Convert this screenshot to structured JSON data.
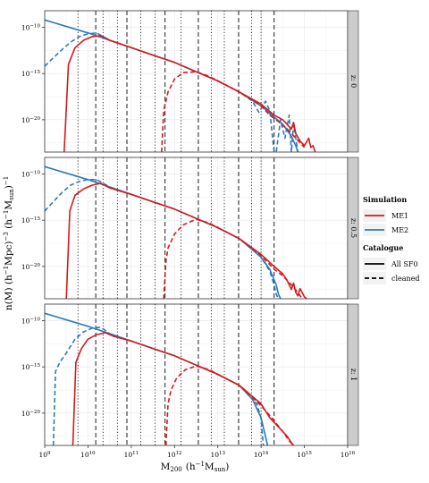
{
  "chart_data": {
    "type": "line",
    "xlabel": "M",
    "xlabel_sub": "200",
    "xlabel_units": "(h",
    "xlabel_units_sup": "−1",
    "xlabel_units_tail": "M",
    "xlabel_units_sub": "sun",
    "xlabel_units_close": ")",
    "ylabel_parts": {
      "a": "n(M)  (h",
      "a_sup": "−1",
      "b": "Mpc)",
      "b_sup": "−3",
      "c": "  (h",
      "c_sup": "−1",
      "d": "M",
      "d_sub": "sun",
      "e": ")",
      "e_sup": "−1"
    },
    "x_scale": "log",
    "y_scale": "log",
    "xlim_exp": [
      9,
      16
    ],
    "x_ticks": [
      {
        "exp": 9,
        "base": "10",
        "sup": "9"
      },
      {
        "exp": 10,
        "base": "10",
        "sup": "10"
      },
      {
        "exp": 11,
        "base": "10",
        "sup": "11"
      },
      {
        "exp": 12,
        "base": "10",
        "sup": "12"
      },
      {
        "exp": 13,
        "base": "10",
        "sup": "13"
      },
      {
        "exp": 14,
        "base": "10",
        "sup": "14"
      },
      {
        "exp": 15,
        "base": "10",
        "sup": "15"
      },
      {
        "exp": 16,
        "base": "10",
        "sup": "16"
      }
    ],
    "y_ticks": [
      {
        "exp": -10,
        "base": "10",
        "sup": "−10"
      },
      {
        "exp": -15,
        "base": "10",
        "sup": "−15"
      },
      {
        "exp": -20,
        "base": "10",
        "sup": "−20"
      }
    ],
    "grid": true,
    "legend_position": "right",
    "legend": {
      "sim_title": "Simulation",
      "sim_entries": [
        {
          "label": "ME1",
          "color": "#d7191c"
        },
        {
          "label": "ME2",
          "color": "#2b7bba"
        }
      ],
      "cat_title": "Catalogue",
      "cat_entries": [
        {
          "label": "All SF0",
          "style": "solid"
        },
        {
          "label": "cleaned",
          "style": "dashed"
        }
      ]
    },
    "colors": {
      "ME1": "#d7191c",
      "ME2": "#2b7bba",
      "strip": "#cccccc",
      "ref_line": "#333333"
    },
    "reference_lines": {
      "dashed_exp": [
        10.18,
        10.9,
        11.78,
        12.55,
        13.48,
        14.3
      ],
      "dotted_exp": [
        9.77,
        10.35,
        10.68,
        11.22,
        11.55,
        12.15,
        12.85,
        13.15,
        13.78,
        14.0
      ]
    },
    "panels": [
      {
        "strip": "z: 0",
        "ylim_exp": [
          -23.5,
          -8.2
        ],
        "series": [
          {
            "sim": "ME2",
            "style": "solid",
            "x_exp": [
              9.0,
              10.0,
              10.5,
              11.0,
              11.5,
              12.0,
              12.5,
              13.0,
              13.5,
              14.0,
              14.5,
              14.7,
              14.8,
              14.85
            ],
            "y_exp": [
              -9.2,
              -10.6,
              -11.4,
              -12.2,
              -13.0,
              -13.8,
              -14.8,
              -15.8,
              -17.0,
              -18.5,
              -20.5,
              -21.8,
              -22.8,
              -23.5
            ]
          },
          {
            "sim": "ME2",
            "style": "dashed",
            "x_exp": [
              9.0,
              9.2,
              9.4,
              9.6,
              9.8,
              10.0,
              10.2,
              10.5,
              11.0,
              11.5,
              12.0,
              12.5,
              13.0,
              13.5,
              13.8,
              13.95,
              14.1,
              14.2,
              14.3,
              14.35,
              14.45,
              14.55,
              14.65,
              14.7,
              14.75,
              14.85
            ],
            "y_exp": [
              -14.2,
              -13.3,
              -12.4,
              -11.6,
              -11.0,
              -10.7,
              -10.6,
              -11.4,
              -12.2,
              -13.0,
              -13.8,
              -14.8,
              -15.8,
              -17.0,
              -18.0,
              -19.2,
              -18.0,
              -19.0,
              -23.5,
              -23.5,
              -20.0,
              -22.0,
              -19.5,
              -23.5,
              -20.5,
              -23.5
            ]
          },
          {
            "sim": "ME1",
            "style": "solid",
            "x_exp": [
              9.45,
              9.55,
              9.7,
              9.9,
              10.1,
              10.3,
              10.5,
              11.0,
              11.5,
              12.0,
              12.5,
              13.0,
              13.5,
              14.0,
              14.3,
              14.5,
              14.6,
              14.7,
              14.75,
              14.8,
              14.9,
              15.0,
              15.1,
              15.15,
              15.2,
              15.25
            ],
            "y_exp": [
              -23.5,
              -14.0,
              -12.2,
              -11.4,
              -11.0,
              -10.9,
              -11.4,
              -12.2,
              -13.0,
              -13.8,
              -14.8,
              -15.8,
              -17.0,
              -18.3,
              -19.5,
              -20.0,
              -20.5,
              -21.0,
              -20.3,
              -21.5,
              -22.3,
              -22.8,
              -22.0,
              -23.0,
              -22.8,
              -23.5
            ]
          },
          {
            "sim": "ME1",
            "style": "dashed",
            "x_exp": [
              11.7,
              11.75,
              11.85,
              12.0,
              12.2,
              12.5,
              12.8,
              13.0,
              13.5,
              14.0,
              14.2,
              14.4,
              14.6,
              14.8,
              15.0
            ],
            "y_exp": [
              -23.5,
              -19.0,
              -17.0,
              -15.6,
              -14.9,
              -14.8,
              -15.3,
              -15.8,
              -17.0,
              -18.5,
              -19.5,
              -20.2,
              -21.0,
              -22.0,
              -23.0
            ]
          }
        ]
      },
      {
        "strip": "z: 0.5",
        "ylim_exp": [
          -23.5,
          -8.2
        ],
        "series": [
          {
            "sim": "ME2",
            "style": "solid",
            "x_exp": [
              9.0,
              10.0,
              10.5,
              11.0,
              11.5,
              12.0,
              12.5,
              13.0,
              13.5,
              14.0,
              14.2,
              14.35,
              14.4,
              14.45
            ],
            "y_exp": [
              -9.2,
              -10.6,
              -11.4,
              -12.2,
              -13.0,
              -13.8,
              -14.8,
              -15.8,
              -17.0,
              -19.0,
              -20.3,
              -22.0,
              -23.0,
              -23.5
            ]
          },
          {
            "sim": "ME2",
            "style": "dashed",
            "x_exp": [
              9.0,
              9.2,
              9.4,
              9.6,
              9.8,
              10.0,
              10.2,
              10.5,
              11.0,
              11.5,
              12.0,
              12.5,
              13.0,
              13.5,
              14.0,
              14.2,
              14.3,
              14.35,
              14.4
            ],
            "y_exp": [
              -14.0,
              -13.0,
              -12.0,
              -11.2,
              -10.8,
              -10.6,
              -10.6,
              -11.4,
              -12.2,
              -13.0,
              -13.8,
              -14.8,
              -15.8,
              -17.0,
              -19.0,
              -20.5,
              -22.0,
              -23.0,
              -23.5
            ]
          },
          {
            "sim": "ME1",
            "style": "solid",
            "x_exp": [
              9.5,
              9.58,
              9.7,
              9.9,
              10.1,
              10.3,
              10.5,
              11.0,
              11.5,
              12.0,
              12.5,
              13.0,
              13.5,
              14.0,
              14.3,
              14.5,
              14.6,
              14.7,
              14.75,
              14.8,
              14.85,
              14.9,
              15.0,
              15.05
            ],
            "y_exp": [
              -23.5,
              -14.0,
              -12.3,
              -11.6,
              -11.2,
              -11.0,
              -11.5,
              -12.2,
              -13.0,
              -13.8,
              -14.8,
              -15.8,
              -17.0,
              -18.7,
              -20.0,
              -20.8,
              -21.5,
              -22.5,
              -21.8,
              -22.8,
              -23.2,
              -22.4,
              -23.3,
              -23.5
            ]
          },
          {
            "sim": "ME1",
            "style": "dashed",
            "x_exp": [
              11.75,
              11.8,
              11.85,
              12.0,
              12.2,
              12.5,
              12.8,
              13.0,
              13.5,
              14.0,
              14.3,
              14.5,
              14.7,
              14.85,
              14.95
            ],
            "y_exp": [
              -23.5,
              -19.5,
              -18.0,
              -16.5,
              -15.5,
              -14.9,
              -15.3,
              -15.8,
              -17.0,
              -18.8,
              -20.3,
              -21.0,
              -22.0,
              -22.8,
              -23.5
            ]
          }
        ]
      },
      {
        "strip": "z: 1",
        "ylim_exp": [
          -23.5,
          -8.2
        ],
        "series": [
          {
            "sim": "ME2",
            "style": "solid",
            "x_exp": [
              9.0,
              10.0,
              10.5,
              11.0,
              11.5,
              12.0,
              12.5,
              13.0,
              13.5,
              13.8,
              14.0,
              14.1,
              14.15
            ],
            "y_exp": [
              -9.2,
              -10.6,
              -11.4,
              -12.2,
              -13.0,
              -13.8,
              -14.8,
              -15.8,
              -17.0,
              -18.5,
              -20.5,
              -22.5,
              -23.5
            ]
          },
          {
            "sim": "ME2",
            "style": "dashed",
            "x_exp": [
              9.2,
              9.25,
              9.35,
              9.5,
              9.7,
              9.9,
              10.1,
              10.3,
              10.5,
              11.0,
              11.5,
              12.0,
              12.5,
              13.0,
              13.5,
              13.8,
              13.9,
              14.0,
              14.05
            ],
            "y_exp": [
              -23.5,
              -15.5,
              -14.5,
              -13.5,
              -12.0,
              -11.2,
              -10.8,
              -10.7,
              -11.4,
              -12.2,
              -13.0,
              -13.8,
              -14.8,
              -15.8,
              -17.0,
              -18.5,
              -19.0,
              -20.5,
              -23.5
            ]
          },
          {
            "sim": "ME1",
            "style": "solid",
            "x_exp": [
              9.65,
              9.72,
              9.85,
              10.0,
              10.2,
              10.4,
              10.6,
              11.0,
              11.5,
              12.0,
              12.5,
              13.0,
              13.5,
              14.0,
              14.2,
              14.4,
              14.5,
              14.6,
              14.7,
              14.75
            ],
            "y_exp": [
              -23.5,
              -14.5,
              -13.0,
              -12.0,
              -11.5,
              -11.3,
              -11.7,
              -12.2,
              -13.0,
              -13.8,
              -14.8,
              -15.8,
              -17.0,
              -19.0,
              -20.5,
              -21.5,
              -22.0,
              -22.5,
              -23.2,
              -23.5
            ]
          },
          {
            "sim": "ME1",
            "style": "dashed",
            "x_exp": [
              11.8,
              11.85,
              11.92,
              12.05,
              12.25,
              12.5,
              12.8,
              13.0,
              13.5,
              14.0,
              14.3,
              14.5,
              14.65,
              14.75
            ],
            "y_exp": [
              -23.5,
              -19.0,
              -17.5,
              -16.2,
              -15.3,
              -14.9,
              -15.3,
              -15.8,
              -17.0,
              -19.2,
              -20.8,
              -22.0,
              -23.0,
              -23.5
            ]
          }
        ]
      }
    ]
  }
}
